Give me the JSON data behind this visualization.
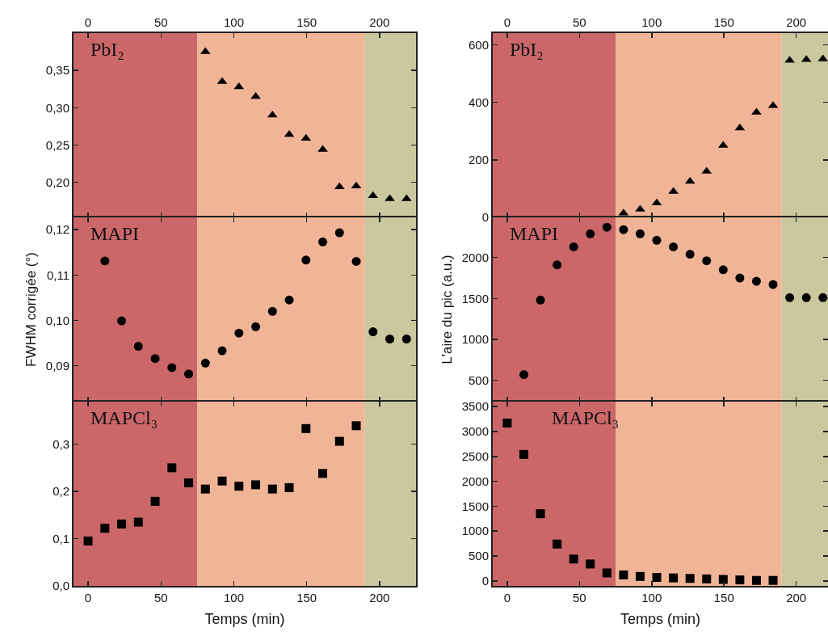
{
  "chart_data": [
    {
      "type": "scatter",
      "annotations": [
        "PbI₂"
      ],
      "xlim": [
        -10,
        225
      ],
      "xticks": [
        0,
        50,
        100,
        150,
        200
      ],
      "ylim": [
        0.153,
        0.4
      ],
      "yticks": [
        {
          "value": 0.2,
          "label": "0,20"
        },
        {
          "value": 0.25,
          "label": "0,25"
        },
        {
          "value": 0.3,
          "label": "0,30"
        },
        {
          "value": 0.35,
          "label": "0,35"
        }
      ],
      "marker": "triangle",
      "bands": [
        {
          "axis": "x",
          "from": -10,
          "to": 75,
          "color": "#cb6769"
        },
        {
          "axis": "x",
          "from": 75,
          "to": 190,
          "color": "#f0b597"
        },
        {
          "axis": "x",
          "from": 190,
          "to": 225,
          "color": "#cbc79e"
        }
      ],
      "series": [
        {
          "color": "#000000",
          "x": [
            80.5,
            92,
            103.5,
            115,
            126.5,
            138,
            149.5,
            161,
            172.5,
            184,
            195.5,
            207,
            218.5
          ],
          "values": [
            0.375,
            0.335,
            0.328,
            0.315,
            0.29,
            0.264,
            0.259,
            0.244,
            0.194,
            0.195,
            0.182,
            0.178,
            0.178
          ]
        }
      ]
    },
    {
      "type": "scatter",
      "annotations": [
        "MAPI"
      ],
      "ylabel": "FWHM corrigée (°)",
      "tick_labels": "y",
      "xlim": [
        -10,
        225
      ],
      "xticks": [
        0,
        50,
        100,
        150,
        200
      ],
      "ylim": [
        0.0821,
        0.1227
      ],
      "yticks": [
        {
          "value": 0.09,
          "label": "0,09"
        },
        {
          "value": 0.1,
          "label": "0,10"
        },
        {
          "value": 0.11,
          "label": "0,11"
        },
        {
          "value": 0.12,
          "label": "0,12"
        }
      ],
      "marker": "circle",
      "bands": [
        {
          "axis": "x",
          "from": -10,
          "to": 75,
          "color": "#cb6769"
        },
        {
          "axis": "x",
          "from": 75,
          "to": 190,
          "color": "#f0b597"
        },
        {
          "axis": "x",
          "from": 190,
          "to": 225,
          "color": "#cbc79e"
        }
      ],
      "series": [
        {
          "color": "#000000",
          "x": [
            11.5,
            23,
            34.5,
            46,
            57.5,
            69,
            80.5,
            92,
            103.5,
            115,
            126.5,
            138,
            149.5,
            161,
            172.5,
            184,
            195.5,
            207,
            218.5
          ],
          "values": [
            0.1131,
            0.0999,
            0.0943,
            0.0916,
            0.0896,
            0.0882,
            0.0906,
            0.0933,
            0.0972,
            0.0986,
            0.102,
            0.1045,
            0.1133,
            0.1173,
            0.1193,
            0.113,
            0.0975,
            0.0959,
            0.0959
          ]
        }
      ]
    },
    {
      "type": "scatter",
      "annotations": [
        "MAPCl₃"
      ],
      "xlabel": "Temps (min)",
      "xlim": [
        -10,
        225
      ],
      "xticks": [
        0,
        50,
        100,
        150,
        200
      ],
      "ylim": [
        0,
        0.39
      ],
      "yticks": [
        {
          "value": 0,
          "label": "0,0"
        },
        {
          "value": 0.1,
          "label": "0,1"
        },
        {
          "value": 0.2,
          "label": "0,2"
        },
        {
          "value": 0.3,
          "label": "0,3"
        }
      ],
      "marker": "square",
      "bands": [
        {
          "axis": "x",
          "from": -10,
          "to": 75,
          "color": "#cb6769"
        },
        {
          "axis": "x",
          "from": 75,
          "to": 190,
          "color": "#f0b597"
        },
        {
          "axis": "x",
          "from": 190,
          "to": 225,
          "color": "#cbc79e"
        }
      ],
      "series": [
        {
          "color": "#000000",
          "x": [
            0,
            11.5,
            23,
            34.5,
            46,
            57.5,
            69,
            80.5,
            92,
            103.5,
            115,
            126.5,
            138,
            149.5,
            161,
            172.5,
            184
          ],
          "values": [
            0.095,
            0.122,
            0.131,
            0.135,
            0.179,
            0.25,
            0.218,
            0.205,
            0.222,
            0.211,
            0.214,
            0.205,
            0.208,
            0.333,
            0.238,
            0.306,
            0.339
          ]
        }
      ]
    },
    {
      "type": "scatter",
      "annotations": [
        "PbI₂"
      ],
      "xlim": [
        -10,
        222
      ],
      "xticks": [
        0,
        50,
        100,
        150,
        200
      ],
      "ylim": [
        0,
        640
      ],
      "yticks": [
        0,
        200,
        400,
        600
      ],
      "marker": "triangle",
      "bands": [
        {
          "axis": "x",
          "from": -10,
          "to": 75,
          "color": "#cb6769"
        },
        {
          "axis": "x",
          "from": 75,
          "to": 190,
          "color": "#f0b597"
        },
        {
          "axis": "x",
          "from": 190,
          "to": 222,
          "color": "#cbc79e"
        }
      ],
      "series": [
        {
          "color": "#000000",
          "x": [
            80.5,
            92,
            103.5,
            115,
            126.5,
            138,
            149.5,
            161,
            172.5,
            184,
            195.5,
            207,
            218.5
          ],
          "values": [
            15,
            28,
            50,
            90,
            125,
            160,
            250,
            310,
            365,
            388,
            545,
            548,
            550
          ]
        }
      ]
    },
    {
      "type": "scatter",
      "annotations": [
        "MAPI"
      ],
      "ylabel": "L'aire du pic (a.u.)",
      "tick_labels": "y",
      "xlim": [
        -10,
        222
      ],
      "xticks": [
        0,
        50,
        100,
        150,
        200
      ],
      "ylim": [
        240,
        2490
      ],
      "yticks": [
        500,
        1000,
        1500,
        2000
      ],
      "marker": "circle",
      "bands": [
        {
          "axis": "x",
          "from": -10,
          "to": 75,
          "color": "#cb6769"
        },
        {
          "axis": "x",
          "from": 75,
          "to": 190,
          "color": "#f0b597"
        },
        {
          "axis": "x",
          "from": 190,
          "to": 222,
          "color": "#cbc79e"
        }
      ],
      "series": [
        {
          "color": "#000000",
          "x": [
            11.5,
            23,
            34.5,
            46,
            57.5,
            69,
            80.5,
            92,
            103.5,
            115,
            126.5,
            138,
            149.5,
            161,
            172.5,
            184,
            195.5,
            207,
            218.5
          ],
          "values": [
            570,
            1480,
            1910,
            2130,
            2290,
            2370,
            2340,
            2290,
            2210,
            2130,
            2040,
            1960,
            1850,
            1750,
            1710,
            1670,
            1510,
            1510,
            1510
          ]
        }
      ]
    },
    {
      "type": "scatter",
      "annotations": [
        "MAPCl₃"
      ],
      "xlabel": "Temps (min)",
      "xlim": [
        -10,
        222
      ],
      "xticks": [
        0,
        50,
        100,
        150,
        200
      ],
      "ylim": [
        -100,
        3600
      ],
      "yticks": [
        0,
        500,
        1000,
        1500,
        2000,
        2500,
        3000,
        3500
      ],
      "marker": "square",
      "bands": [
        {
          "axis": "x",
          "from": -10,
          "to": 75,
          "color": "#cb6769"
        },
        {
          "axis": "x",
          "from": 75,
          "to": 190,
          "color": "#f0b597"
        },
        {
          "axis": "x",
          "from": 190,
          "to": 222,
          "color": "#cbc79e"
        }
      ],
      "series": [
        {
          "color": "#000000",
          "x": [
            0,
            11.5,
            23,
            34.5,
            46,
            57.5,
            69,
            80.5,
            92,
            103.5,
            115,
            126.5,
            138,
            149.5,
            161,
            172.5,
            184
          ],
          "values": [
            3170,
            2540,
            1350,
            740,
            440,
            340,
            160,
            120,
            90,
            70,
            60,
            50,
            40,
            30,
            20,
            10,
            10
          ]
        }
      ]
    }
  ]
}
